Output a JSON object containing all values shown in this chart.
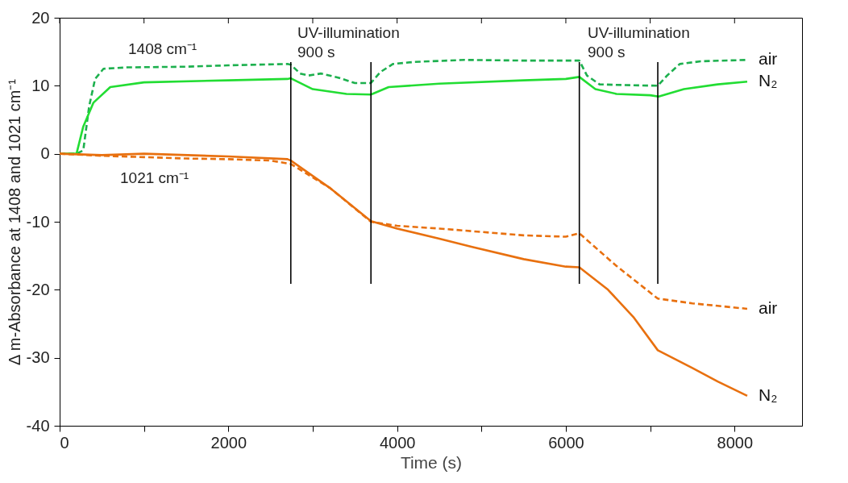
{
  "chart_data": {
    "type": "line",
    "xlabel": "Time (s)",
    "ylabel": "Δ m-Absorbance at 1408 and 1021 cm⁻¹",
    "xlim": [
      0,
      8800
    ],
    "ylim": [
      -40,
      20
    ],
    "xticks": [
      0,
      {
        "value": 1000,
        "label": null
      },
      2000,
      {
        "value": 3000,
        "label": null
      },
      4000,
      {
        "value": 5000,
        "label": null
      },
      6000,
      {
        "value": 7000,
        "label": null
      },
      8000
    ],
    "yticks": [
      -40,
      -30,
      -20,
      -10,
      0,
      10,
      20
    ],
    "grid": false,
    "marker": "none",
    "series": [
      {
        "name": "air",
        "color": "#1db04e",
        "line_style": "dashed",
        "x": [
          0,
          200,
          280,
          350,
          420,
          520,
          800,
          1500,
          2000,
          2700,
          2740,
          2850,
          2950,
          3100,
          3300,
          3500,
          3690,
          3800,
          3950,
          4200,
          4800,
          5500,
          6160,
          6250,
          6400,
          6700,
          7090,
          7200,
          7350,
          7600,
          8150
        ],
        "values": [
          0,
          0,
          0.5,
          7,
          11,
          12.5,
          12.7,
          12.8,
          13,
          13.2,
          13.1,
          11.8,
          11.5,
          11.8,
          11.2,
          10.4,
          10.4,
          12,
          13.2,
          13.5,
          13.8,
          13.7,
          13.7,
          11.5,
          10.2,
          10.1,
          10,
          11.5,
          13.2,
          13.6,
          13.8
        ]
      },
      {
        "name": "N₂",
        "color": "#22dd33",
        "line_style": "solid",
        "x": [
          0,
          200,
          280,
          400,
          600,
          1000,
          2000,
          2700,
          2740,
          3000,
          3400,
          3690,
          3900,
          4500,
          5500,
          6000,
          6160,
          6350,
          6600,
          7000,
          7100,
          7400,
          7800,
          8150
        ],
        "values": [
          0,
          0,
          4,
          7.5,
          9.8,
          10.5,
          10.8,
          11,
          11.1,
          9.5,
          8.8,
          8.7,
          9.8,
          10.3,
          10.8,
          11,
          11.3,
          9.5,
          8.8,
          8.6,
          8.4,
          9.5,
          10.2,
          10.6
        ]
      },
      {
        "name": "air",
        "color": "#e8700f",
        "line_style": "dashed",
        "x": [
          0,
          500,
          1000,
          1500,
          2000,
          2500,
          2740,
          3200,
          3690,
          4000,
          4500,
          5000,
          5500,
          6000,
          6160,
          6600,
          7090,
          7500,
          8150
        ],
        "values": [
          0,
          -0.3,
          -0.5,
          -0.7,
          -0.8,
          -1,
          -1.5,
          -5,
          -10,
          -10.6,
          -11,
          -11.5,
          -12,
          -12.2,
          -11.7,
          -16.5,
          -21.3,
          -22,
          -22.8
        ]
      },
      {
        "name": "N₂",
        "color": "#e8700f",
        "line_style": "solid",
        "x": [
          0,
          500,
          1000,
          2000,
          2700,
          2740,
          3200,
          3690,
          4000,
          4500,
          4890,
          5500,
          6000,
          6160,
          6500,
          6800,
          7090,
          7500,
          7800,
          8150
        ],
        "values": [
          0,
          -0.2,
          0,
          -0.4,
          -0.8,
          -1,
          -5,
          -9.9,
          -11,
          -12.5,
          -13.7,
          -15.5,
          -16.6,
          -16.7,
          -20,
          -24,
          -28.9,
          -31.5,
          -33.5,
          -35.6
        ]
      }
    ],
    "ref_lines": [
      {
        "axis": "x",
        "value": 2740,
        "color": "#000000"
      },
      {
        "axis": "x",
        "value": 3690,
        "color": "#000000"
      },
      {
        "axis": "x",
        "value": 6160,
        "color": "#000000"
      },
      {
        "axis": "x",
        "value": 7090,
        "color": "#000000"
      }
    ],
    "annotations": [
      "1408 cm⁻¹",
      "1021 cm⁻¹",
      "UV-illumination\n900 s",
      "UV-illumination\n900 s"
    ]
  }
}
